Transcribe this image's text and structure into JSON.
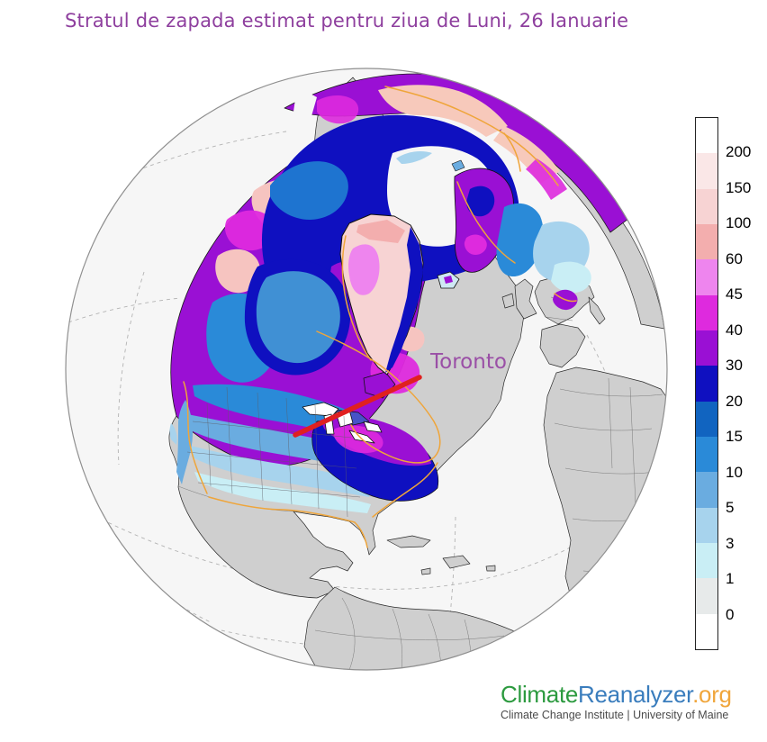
{
  "title": {
    "text": "Stratul de zapada estimat pentru ziua de Luni, 26 Ianuarie",
    "color": "#8e3f9e"
  },
  "map": {
    "type": "orthographic-globe-snow-depth",
    "annotation": {
      "label": "Toronto",
      "label_color": "#9a4fa6",
      "pointer_line_color": "#e02020"
    },
    "ocean_color": "#f6f6f6",
    "land_no_snow_color": "#cfcfcf",
    "coastline_highlight_color": "#efa53a",
    "graticule_color": "#b3b3b3"
  },
  "colorbar": {
    "tick_labels": [
      "200",
      "150",
      "100",
      "60",
      "45",
      "40",
      "30",
      "20",
      "15",
      "10",
      "5",
      "3",
      "1",
      "0"
    ],
    "segment_colors_top_to_bottom": [
      "#ffffff",
      "#fae7e7",
      "#f7d3d3",
      "#f3aeae",
      "#ee85ee",
      "#de2ade",
      "#9a10d4",
      "#0f10c0",
      "#1164c0",
      "#2a8ad8",
      "#6aace0",
      "#a7d3ed",
      "#c9eef5",
      "#e7eaea",
      "#ffffff"
    ]
  },
  "branding": {
    "logo_part1": "Climate",
    "logo_part1_color": "#2c9a3f",
    "logo_part2": "Reanalyzer",
    "logo_part2_color": "#3a7dbd",
    "logo_part3": ".org",
    "logo_part3_color": "#f0a63c",
    "subtitle": "Climate Change Institute | University of Maine"
  }
}
